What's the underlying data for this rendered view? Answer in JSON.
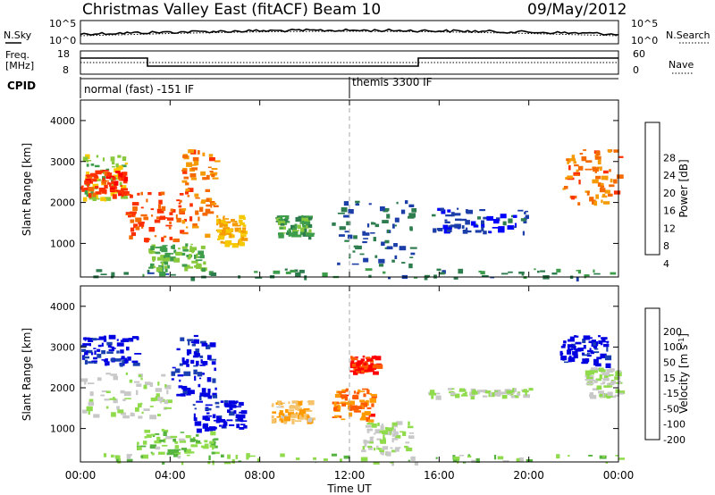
{
  "header": {
    "title": "Christmas Valley East (fitACF)",
    "beam": "Beam 10",
    "date": "09/May/2012"
  },
  "meta_panels": {
    "nsky_label": "N.Sky",
    "nsearch_label": "N.Search",
    "count_axis_top": "10^5",
    "count_axis_bottom": "10^0",
    "freq_label_line1": "Freq.",
    "freq_label_line2": "[MHz]",
    "freq_ticks": [
      "18",
      "8"
    ],
    "nave_label": "Nave",
    "nave_ticks": [
      "60",
      "0"
    ],
    "cpid_label": "CPID",
    "cpid_modes": [
      "normal (fast) -151 IF",
      "themis 3300 IF"
    ]
  },
  "colors": {
    "power_scale": [
      "#0000ff",
      "#1c3ea8",
      "#2e7d4f",
      "#3e9d4a",
      "#88c83c",
      "#f5c800",
      "#f59a00",
      "#f56a00",
      "#ff3000",
      "#ff0000"
    ],
    "velocity_scale": [
      "#0000e0",
      "#1a3fb0",
      "#2a7d3c",
      "#55b43f",
      "#8fdb4c",
      "#c8c8c8",
      "#f4c36c",
      "#ff9a00",
      "#ff5a00",
      "#ff0000"
    ]
  },
  "chart_data": [
    {
      "type": "heatmap",
      "title": "",
      "xlabel": "Time UT",
      "ylabel": "Slant Range [km]",
      "x_ticks": [
        "00:00",
        "04:00",
        "08:00",
        "12:00",
        "16:00",
        "20:00",
        "00:00"
      ],
      "xlim_hours": [
        0,
        24
      ],
      "ylim_km": [
        180,
        4500
      ],
      "y_ticks": [
        "1000",
        "2000",
        "3000",
        "4000"
      ],
      "colorbar": {
        "label": "Power [dB]",
        "ticks": [
          "28",
          "24",
          "20",
          "16",
          "12",
          "8",
          "4"
        ],
        "range": [
          0,
          30
        ]
      },
      "echo_regions": [
        {
          "t_start": 0.0,
          "t_end": 2.0,
          "range_start": 2100,
          "range_end": 3200,
          "power_db": 14
        },
        {
          "t_start": 0.0,
          "t_end": 2.0,
          "range_start": 2200,
          "range_end": 2800,
          "power_db": 26
        },
        {
          "t_start": 2.0,
          "t_end": 4.5,
          "range_start": 1100,
          "range_end": 2300,
          "power_db": 24
        },
        {
          "t_start": 4.5,
          "t_end": 6.0,
          "range_start": 1200,
          "range_end": 3300,
          "power_db": 22
        },
        {
          "t_start": 6.0,
          "t_end": 7.3,
          "range_start": 1000,
          "range_end": 1700,
          "power_db": 18
        },
        {
          "t_start": 3.0,
          "t_end": 5.5,
          "range_start": 400,
          "range_end": 1000,
          "power_db": 12
        },
        {
          "t_start": 8.7,
          "t_end": 10.2,
          "range_start": 1200,
          "range_end": 1700,
          "power_db": 10
        },
        {
          "t_start": 11.2,
          "t_end": 14.8,
          "range_start": 500,
          "range_end": 2100,
          "power_db": 6
        },
        {
          "t_start": 15.5,
          "t_end": 20.0,
          "range_start": 1300,
          "range_end": 1900,
          "power_db": 4
        },
        {
          "t_start": 21.5,
          "t_end": 24.0,
          "range_start": 2000,
          "range_end": 3300,
          "power_db": 22
        },
        {
          "t_start": 0.5,
          "t_end": 24.0,
          "range_start": 180,
          "range_end": 400,
          "power_db": 8
        }
      ]
    },
    {
      "type": "heatmap",
      "title": "",
      "xlabel": "Time UT",
      "ylabel": "Slant Range [km]",
      "x_ticks": [
        "00:00",
        "04:00",
        "08:00",
        "12:00",
        "16:00",
        "20:00",
        "00:00"
      ],
      "xlim_hours": [
        0,
        24
      ],
      "ylim_km": [
        180,
        4500
      ],
      "y_ticks": [
        "1000",
        "2000",
        "3000",
        "4000"
      ],
      "colorbar": {
        "label": "Velocity [m s^-1]",
        "ticks": [
          "200",
          "100",
          "50",
          "15",
          "-15",
          "-50",
          "-100",
          "-200"
        ],
        "range": [
          -250,
          250
        ]
      },
      "echo_regions": [
        {
          "t_start": 0.0,
          "t_end": 2.5,
          "range_start": 2600,
          "range_end": 3300,
          "velocity": 220
        },
        {
          "t_start": 0.0,
          "t_end": 4.0,
          "range_start": 1300,
          "range_end": 2400,
          "velocity": 0
        },
        {
          "t_start": 4.0,
          "t_end": 6.0,
          "range_start": 1800,
          "range_end": 3300,
          "velocity": 220
        },
        {
          "t_start": 5.0,
          "t_end": 7.3,
          "range_start": 1000,
          "range_end": 1700,
          "velocity": 230
        },
        {
          "t_start": 2.5,
          "t_end": 6.0,
          "range_start": 400,
          "range_end": 1000,
          "velocity": 40
        },
        {
          "t_start": 8.5,
          "t_end": 10.2,
          "range_start": 1200,
          "range_end": 1700,
          "velocity": -90
        },
        {
          "t_start": 11.2,
          "t_end": 13.0,
          "range_start": 1200,
          "range_end": 2000,
          "velocity": -160
        },
        {
          "t_start": 12.5,
          "t_end": 14.7,
          "range_start": 400,
          "range_end": 1200,
          "velocity": 5
        },
        {
          "t_start": 12.0,
          "t_end": 13.2,
          "range_start": 2400,
          "range_end": 2800,
          "velocity": -210
        },
        {
          "t_start": 15.5,
          "t_end": 20.0,
          "range_start": 1800,
          "range_end": 2000,
          "velocity": 0
        },
        {
          "t_start": 21.3,
          "t_end": 23.5,
          "range_start": 2600,
          "range_end": 3300,
          "velocity": 230
        },
        {
          "t_start": 22.5,
          "t_end": 24.0,
          "range_start": 1800,
          "range_end": 2500,
          "velocity": 0
        },
        {
          "t_start": 1.0,
          "t_end": 24.0,
          "range_start": 180,
          "range_end": 400,
          "velocity": 30
        }
      ]
    }
  ]
}
